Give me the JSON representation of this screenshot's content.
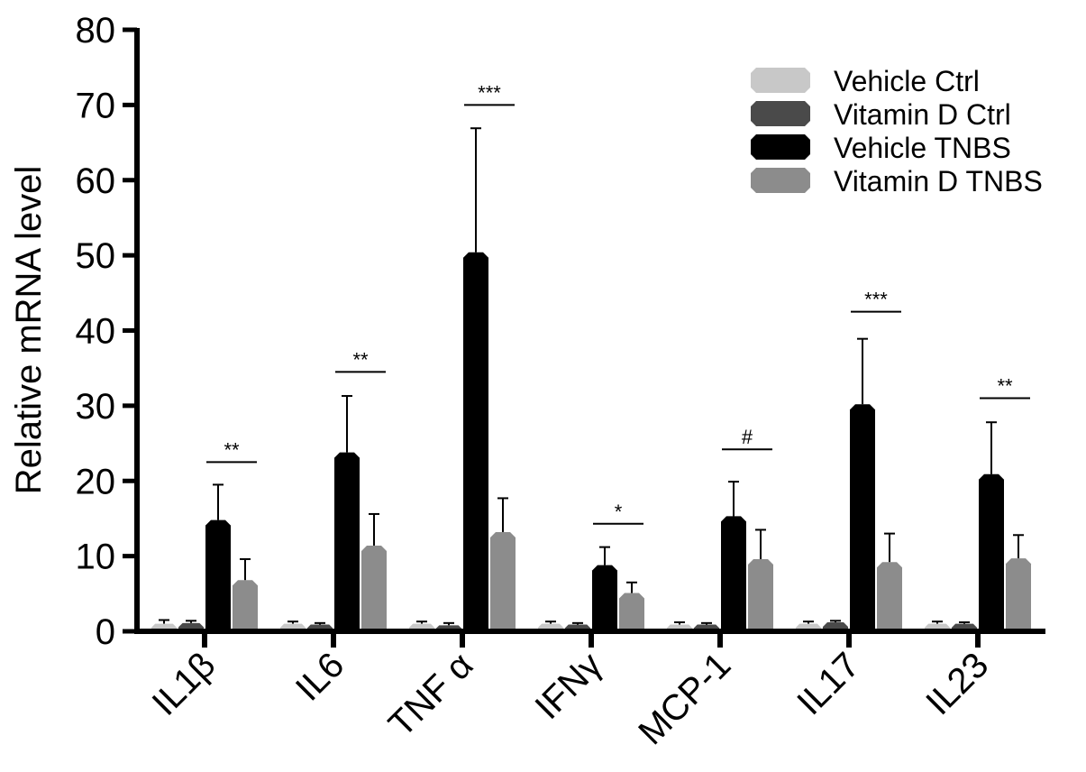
{
  "chart_data": {
    "type": "bar",
    "title": "",
    "xlabel": "",
    "ylabel": "Relative mRNA level",
    "ylim": [
      0,
      80
    ],
    "yticks": [
      0,
      10,
      20,
      30,
      40,
      50,
      60,
      70,
      80
    ],
    "grid": false,
    "legend": "top-right",
    "categories": [
      "IL1β",
      "IL6",
      "TNF α",
      "IFNγ",
      "MCP-1",
      "IL17",
      "IL23"
    ],
    "series": [
      {
        "name": "Vehicle Ctrl",
        "color": "#c8c8c8",
        "values": [
          1.0,
          1.0,
          1.0,
          1.0,
          0.9,
          1.0,
          1.0
        ],
        "errors": [
          0.5,
          0.3,
          0.3,
          0.3,
          0.3,
          0.3,
          0.3
        ]
      },
      {
        "name": "Vitamin D Ctrl",
        "color": "#4a4a4a",
        "values": [
          1.1,
          0.9,
          0.8,
          0.9,
          0.9,
          1.2,
          1.0
        ],
        "errors": [
          0.3,
          0.2,
          0.3,
          0.2,
          0.2,
          0.2,
          0.2
        ]
      },
      {
        "name": "Vehicle TNBS",
        "color": "#000000",
        "values": [
          14.8,
          23.8,
          50.4,
          8.8,
          15.3,
          30.2,
          20.9
        ],
        "errors": [
          4.7,
          7.5,
          16.5,
          2.4,
          4.6,
          8.7,
          6.9
        ]
      },
      {
        "name": "Vitamin D TNBS",
        "color": "#8c8c8c",
        "values": [
          6.8,
          11.4,
          13.2,
          5.1,
          9.6,
          9.2,
          9.7
        ],
        "errors": [
          2.8,
          4.2,
          4.5,
          1.4,
          3.9,
          3.8,
          3.1
        ]
      }
    ],
    "significance": [
      {
        "category": "IL1β",
        "label": "**",
        "y": 22.5
      },
      {
        "category": "IL6",
        "label": "**",
        "y": 34.5
      },
      {
        "category": "TNF α",
        "label": "***",
        "y": 70.0
      },
      {
        "category": "IFNγ",
        "label": "*",
        "y": 14.3
      },
      {
        "category": "MCP-1",
        "label": "#",
        "y": 24.2
      },
      {
        "category": "IL17",
        "label": "***",
        "y": 42.5
      },
      {
        "category": "IL23",
        "label": "**",
        "y": 31.0
      }
    ]
  }
}
